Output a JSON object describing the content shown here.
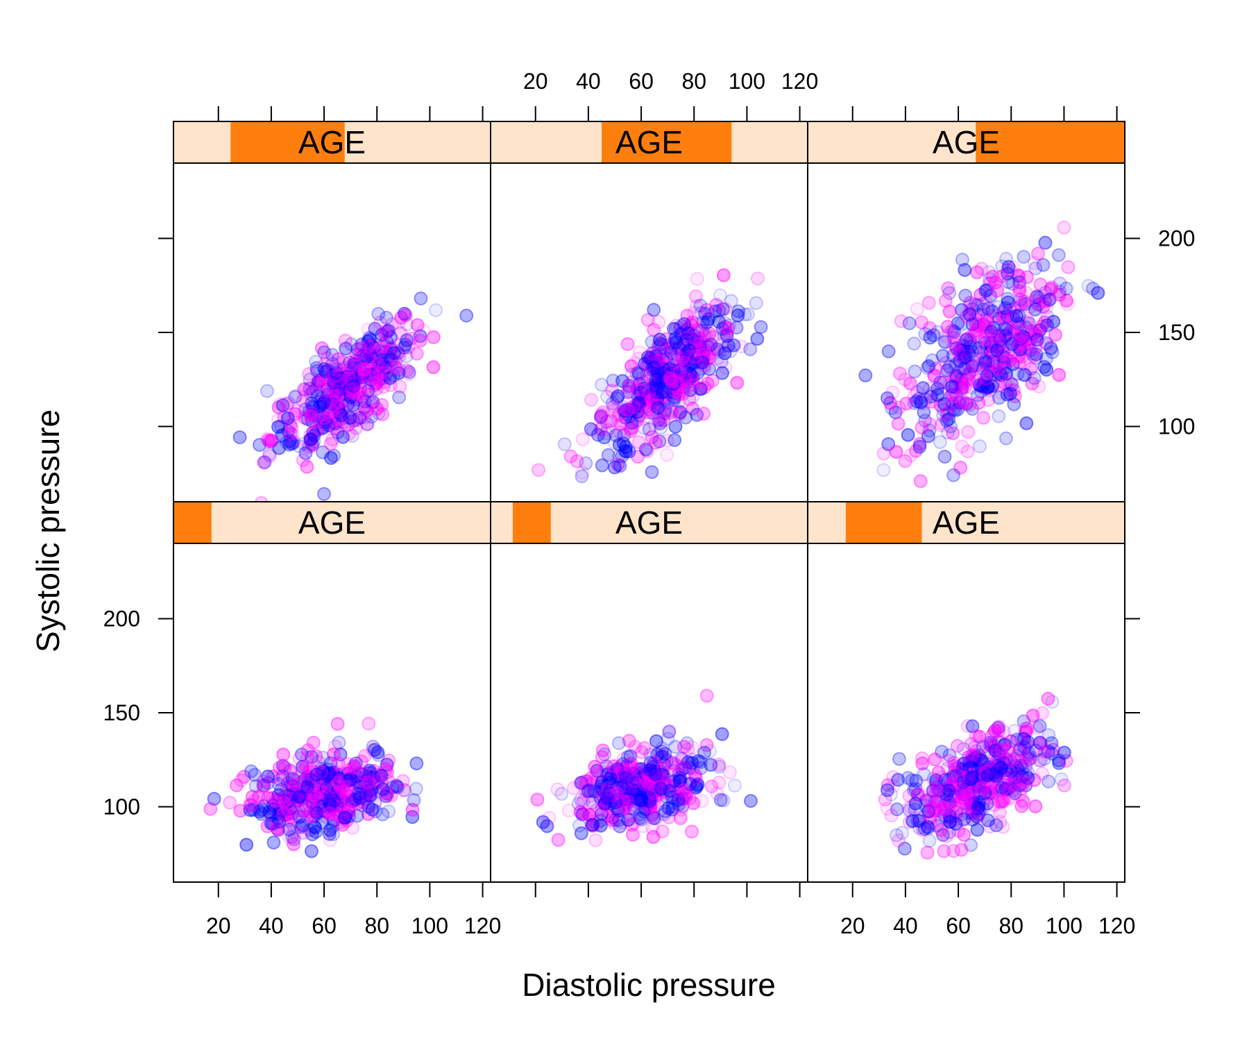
{
  "chart_data": {
    "type": "scatter",
    "xlabel": "Diastolic pressure",
    "ylabel": "Systolic pressure",
    "xlim": [
      3,
      123
    ],
    "ylim": [
      60,
      240
    ],
    "x_ticks": [
      20,
      40,
      60,
      80,
      100,
      120
    ],
    "y_ticks": [
      100,
      150,
      200
    ],
    "strip_label": "AGE",
    "colors": {
      "strip_bg": "#ffe4cc",
      "strip_fill": "#ff7f0e",
      "series_a": "#0000ff",
      "series_b": "#ff00ff"
    },
    "panels": [
      {
        "row": "top",
        "col": 1,
        "strip": "AGE",
        "age_range": [
          0.18,
          0.54
        ],
        "dia_center": 68,
        "sys_center": 120,
        "slope": 0.95,
        "dia_sd": 14,
        "spread": 12,
        "n": 430
      },
      {
        "row": "top",
        "col": 2,
        "strip": "AGE",
        "age_range": [
          0.35,
          0.76
        ],
        "dia_center": 70,
        "sys_center": 126,
        "slope": 1.05,
        "dia_sd": 13,
        "spread": 14,
        "n": 460
      },
      {
        "row": "top",
        "col": 3,
        "strip": "AGE",
        "age_range": [
          0.53,
          1.0
        ],
        "dia_center": 70,
        "sys_center": 140,
        "slope": 0.85,
        "dia_sd": 15,
        "spread": 20,
        "n": 480
      },
      {
        "row": "bottom",
        "col": 1,
        "strip": "AGE",
        "age_range": [
          0.0,
          0.12
        ],
        "dia_center": 60,
        "sys_center": 107,
        "slope": 0.25,
        "dia_sd": 14,
        "spread": 10,
        "n": 420
      },
      {
        "row": "bottom",
        "col": 2,
        "strip": "AGE",
        "age_range": [
          0.07,
          0.19
        ],
        "dia_center": 60,
        "sys_center": 110,
        "slope": 0.25,
        "dia_sd": 13,
        "spread": 10,
        "n": 420
      },
      {
        "row": "bottom",
        "col": 3,
        "strip": "AGE",
        "age_range": [
          0.12,
          0.36
        ],
        "dia_center": 67,
        "sys_center": 114,
        "slope": 0.55,
        "dia_sd": 14,
        "spread": 12,
        "n": 440
      }
    ]
  }
}
